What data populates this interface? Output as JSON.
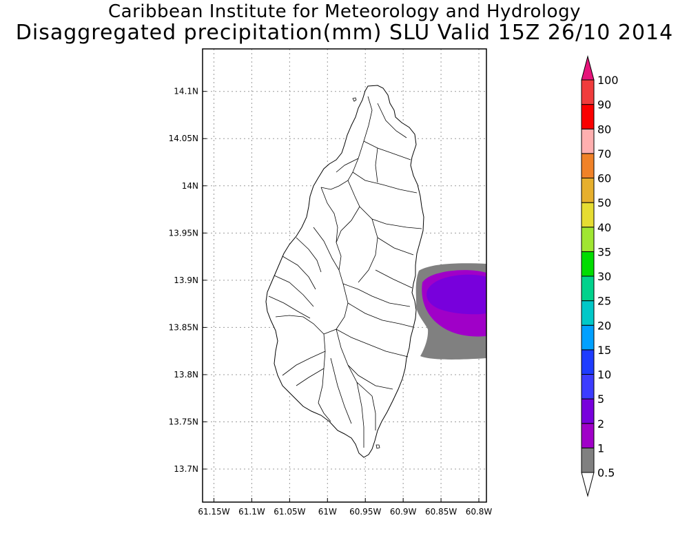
{
  "title": {
    "line1": "Caribbean Institute for Meteorology and Hydrology",
    "line2": "Disaggregated precipitation(mm) SLU Valid 15Z 26/10 2014"
  },
  "map": {
    "lon_range": [
      -61.165,
      -60.79
    ],
    "lat_range": [
      13.665,
      14.145
    ],
    "lon_ticks": [
      {
        "value": -61.15,
        "label": "61.15W"
      },
      {
        "value": -61.1,
        "label": "61.1W"
      },
      {
        "value": -61.05,
        "label": "61.05W"
      },
      {
        "value": -61.0,
        "label": "61W"
      },
      {
        "value": -60.95,
        "label": "60.95W"
      },
      {
        "value": -60.9,
        "label": "60.9W"
      },
      {
        "value": -60.85,
        "label": "60.85W"
      },
      {
        "value": -60.8,
        "label": "60.8W"
      }
    ],
    "lat_ticks": [
      {
        "value": 14.1,
        "label": "14.1N"
      },
      {
        "value": 14.05,
        "label": "14.05N"
      },
      {
        "value": 14.0,
        "label": "14N"
      },
      {
        "value": 13.95,
        "label": "13.95N"
      },
      {
        "value": 13.9,
        "label": "13.9N"
      },
      {
        "value": 13.85,
        "label": "13.85N"
      },
      {
        "value": 13.8,
        "label": "13.8N"
      },
      {
        "value": 13.75,
        "label": "13.75N"
      },
      {
        "value": 13.7,
        "label": "13.7N"
      }
    ],
    "grid": "dotted",
    "island_name": "Saint Lucia"
  },
  "legend": {
    "bins": [
      {
        "label": "0.5",
        "color": "#ffffff"
      },
      {
        "label": "1",
        "color": "#808080"
      },
      {
        "label": "2",
        "color": "#a000c8"
      },
      {
        "label": "5",
        "color": "#7800dc"
      },
      {
        "label": "10",
        "color": "#3c3cff"
      },
      {
        "label": "15",
        "color": "#1e3cff"
      },
      {
        "label": "20",
        "color": "#00a0ff"
      },
      {
        "label": "25",
        "color": "#00c8c8"
      },
      {
        "label": "30",
        "color": "#00d28c"
      },
      {
        "label": "35",
        "color": "#00dc00"
      },
      {
        "label": "40",
        "color": "#a0e632"
      },
      {
        "label": "50",
        "color": "#e6dc32"
      },
      {
        "label": "60",
        "color": "#e6af2d"
      },
      {
        "label": "70",
        "color": "#f08228"
      },
      {
        "label": "80",
        "color": "#ffafaf"
      },
      {
        "label": "90",
        "color": "#fa0000"
      },
      {
        "label": "100",
        "color": "#f03c3c"
      }
    ],
    "top_arrow_color": "#e6147a",
    "bottom_arrow_color": "#ffffff"
  },
  "precip_colors": {
    "light": "#808080",
    "medium": "#a000c8",
    "heavy": "#7800dc"
  }
}
